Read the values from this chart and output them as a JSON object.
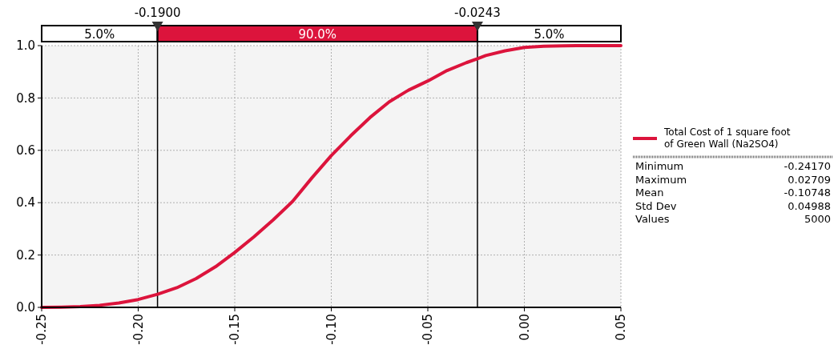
{
  "chart_data": {
    "type": "line",
    "x": [
      -0.25,
      -0.24,
      -0.23,
      -0.22,
      -0.21,
      -0.2,
      -0.19,
      -0.18,
      -0.17,
      -0.16,
      -0.15,
      -0.14,
      -0.13,
      -0.12,
      -0.11,
      -0.1,
      -0.09,
      -0.08,
      -0.07,
      -0.06,
      -0.05,
      -0.04,
      -0.03,
      -0.0243,
      -0.02,
      -0.01,
      0,
      0.01,
      0.02,
      0.027,
      0.05
    ],
    "series": [
      {
        "name": "Total Cost of 1 square foot of Green Wall (Na2SO4)",
        "color": "#dc143c",
        "values": [
          0,
          0.001,
          0.003,
          0.008,
          0.017,
          0.03,
          0.05,
          0.075,
          0.11,
          0.155,
          0.21,
          0.27,
          0.335,
          0.405,
          0.495,
          0.58,
          0.655,
          0.725,
          0.785,
          0.83,
          0.865,
          0.905,
          0.935,
          0.95,
          0.962,
          0.98,
          0.993,
          0.998,
          0.999,
          1,
          1
        ]
      }
    ],
    "xlim": [
      -0.25,
      0.05
    ],
    "xticks": [
      {
        "value": -0.25,
        "label": "-0.25"
      },
      {
        "value": -0.2,
        "label": "-0.20"
      },
      {
        "value": -0.15,
        "label": "-0.15"
      },
      {
        "value": -0.1,
        "label": "-0.10"
      },
      {
        "value": -0.05,
        "label": "-0.05"
      },
      {
        "value": 0,
        "label": "0.00"
      },
      {
        "value": 0.05,
        "label": "0.05"
      }
    ],
    "ylim": [
      0,
      1
    ],
    "yticks": [
      {
        "value": 0,
        "label": "0.0"
      },
      {
        "value": 0.2,
        "label": "0.2"
      },
      {
        "value": 0.4,
        "label": "0.4"
      },
      {
        "value": 0.6,
        "label": "0.6"
      },
      {
        "value": 0.8,
        "label": "0.8"
      },
      {
        "value": 1,
        "label": "1.0"
      }
    ],
    "grid": true,
    "legend": "right",
    "marker": "none",
    "line_style": "solid",
    "ref_lines": [
      {
        "axis": "x",
        "value": -0.19,
        "label": "-0.1900",
        "color": "#000000"
      },
      {
        "axis": "x",
        "value": -0.0243,
        "label": "-0.0243",
        "color": "#000000"
      }
    ],
    "annotations": [
      "5.0%",
      "90.0%",
      "5.0%",
      "Minimum\t-0.24170",
      "Maximum\t0.02709",
      "Mean\t-0.10748",
      "Std Dev\t0.04988",
      "Values\t5000"
    ]
  }
}
